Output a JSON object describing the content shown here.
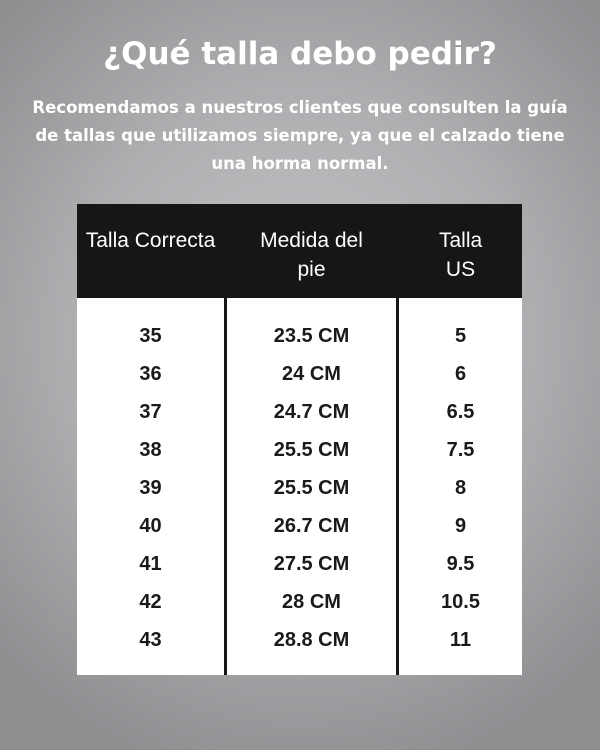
{
  "title": "¿Qué talla debo pedir?",
  "subtitle": "Recomendamos a nuestros clientes que consulten la guía de tallas que utilizamos siempre, ya que el calzado tiene una horma normal.",
  "table": {
    "headers": [
      "Talla Correcta",
      "Medida del pie",
      "Talla US"
    ],
    "rows": [
      [
        "35",
        "23.5 CM",
        "5"
      ],
      [
        "36",
        "24 CM",
        "6"
      ],
      [
        "37",
        "24.7 CM",
        "6.5"
      ],
      [
        "38",
        "25.5 CM",
        "7.5"
      ],
      [
        "39",
        "25.5 CM",
        "8"
      ],
      [
        "40",
        "26.7 CM",
        "9"
      ],
      [
        "41",
        "27.5 CM",
        "9.5"
      ],
      [
        "42",
        "28 CM",
        "10.5"
      ],
      [
        "43",
        "28.8 CM",
        "11"
      ]
    ]
  }
}
